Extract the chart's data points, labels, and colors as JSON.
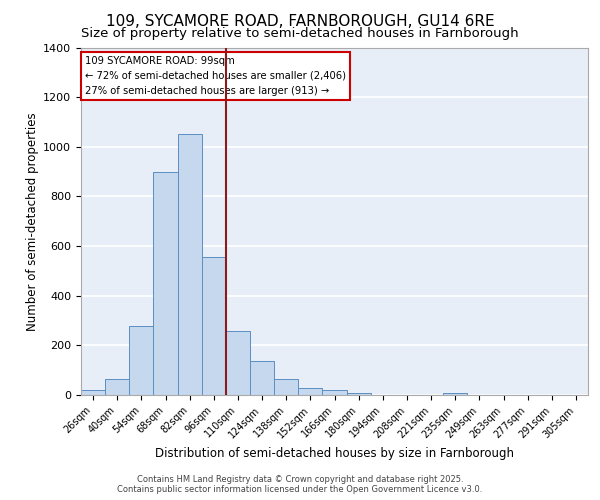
{
  "title1": "109, SYCAMORE ROAD, FARNBOROUGH, GU14 6RE",
  "title2": "Size of property relative to semi-detached houses in Farnborough",
  "xlabel": "Distribution of semi-detached houses by size in Farnborough",
  "ylabel": "Number of semi-detached properties",
  "categories": [
    "26sqm",
    "40sqm",
    "54sqm",
    "68sqm",
    "82sqm",
    "96sqm",
    "110sqm",
    "124sqm",
    "138sqm",
    "152sqm",
    "166sqm",
    "180sqm",
    "194sqm",
    "208sqm",
    "221sqm",
    "235sqm",
    "249sqm",
    "263sqm",
    "277sqm",
    "291sqm",
    "305sqm"
  ],
  "values": [
    20,
    65,
    280,
    900,
    1050,
    555,
    258,
    138,
    65,
    28,
    20,
    10,
    0,
    0,
    0,
    10,
    0,
    0,
    0,
    0,
    0
  ],
  "bar_color": "#c5d8ee",
  "bar_edge_color": "#5b8ec4",
  "vline_x": 5.5,
  "vline_color": "#8b1a1a",
  "property_label": "109 SYCAMORE ROAD: 99sqm",
  "smaller_label": "← 72% of semi-detached houses are smaller (2,406)",
  "larger_label": "27% of semi-detached houses are larger (913) →",
  "annotation_box_edge": "#cc0000",
  "ylim": [
    0,
    1400
  ],
  "yticks": [
    0,
    200,
    400,
    600,
    800,
    1000,
    1200,
    1400
  ],
  "footer1": "Contains HM Land Registry data © Crown copyright and database right 2025.",
  "footer2": "Contains public sector information licensed under the Open Government Licence v3.0.",
  "bg_color": "#e8eef8",
  "grid_color": "#ffffff",
  "title1_fontsize": 11,
  "title2_fontsize": 9.5
}
